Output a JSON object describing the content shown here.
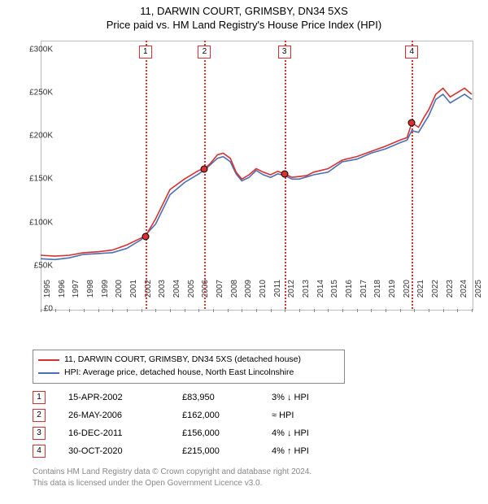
{
  "title_line1": "11, DARWIN COURT, GRIMSBY, DN34 5XS",
  "title_line2": "Price paid vs. HM Land Registry's House Price Index (HPI)",
  "chart": {
    "type": "line",
    "x_min": 1995,
    "x_max": 2025,
    "y_min": 0,
    "y_max": 310000,
    "y_ticks": [
      0,
      50000,
      100000,
      150000,
      200000,
      250000,
      300000
    ],
    "y_tick_labels": [
      "£0",
      "£50K",
      "£100K",
      "£150K",
      "£200K",
      "£250K",
      "£300K"
    ],
    "x_ticks": [
      1995,
      1996,
      1997,
      1998,
      1999,
      2000,
      2001,
      2002,
      2003,
      2004,
      2005,
      2006,
      2007,
      2008,
      2009,
      2010,
      2011,
      2012,
      2013,
      2014,
      2015,
      2016,
      2017,
      2018,
      2019,
      2020,
      2021,
      2022,
      2023,
      2024,
      2025
    ],
    "colors": {
      "red": "#d93030",
      "blue": "#4a6fb3",
      "axis": "#bbbbbb",
      "text": "#333333"
    },
    "line_width": 1.6,
    "series_red": [
      [
        1995,
        62000
      ],
      [
        1996,
        61000
      ],
      [
        1997,
        62000
      ],
      [
        1998,
        65000
      ],
      [
        1999,
        66000
      ],
      [
        2000,
        68000
      ],
      [
        2001,
        74000
      ],
      [
        2002,
        82000
      ],
      [
        2002.29,
        83950
      ],
      [
        2003,
        104000
      ],
      [
        2004,
        138000
      ],
      [
        2005,
        150000
      ],
      [
        2006,
        160000
      ],
      [
        2006.4,
        162000
      ],
      [
        2006.8,
        168000
      ],
      [
        2007.3,
        178000
      ],
      [
        2007.7,
        180000
      ],
      [
        2008.2,
        174000
      ],
      [
        2008.6,
        158000
      ],
      [
        2009,
        150000
      ],
      [
        2009.5,
        155000
      ],
      [
        2010,
        162000
      ],
      [
        2010.5,
        158000
      ],
      [
        2011,
        155000
      ],
      [
        2011.5,
        159000
      ],
      [
        2011.96,
        156000
      ],
      [
        2012.5,
        152000
      ],
      [
        2013,
        153000
      ],
      [
        2013.5,
        154000
      ],
      [
        2014,
        158000
      ],
      [
        2015,
        162000
      ],
      [
        2016,
        172000
      ],
      [
        2017,
        176000
      ],
      [
        2018,
        182000
      ],
      [
        2019,
        188000
      ],
      [
        2020,
        195000
      ],
      [
        2020.5,
        198000
      ],
      [
        2020.83,
        215000
      ],
      [
        2021.3,
        210000
      ],
      [
        2021.7,
        222000
      ],
      [
        2022,
        230000
      ],
      [
        2022.5,
        248000
      ],
      [
        2023,
        255000
      ],
      [
        2023.5,
        245000
      ],
      [
        2024,
        250000
      ],
      [
        2024.5,
        255000
      ],
      [
        2025,
        248000
      ]
    ],
    "series_blue": [
      [
        1995,
        58000
      ],
      [
        1996,
        57000
      ],
      [
        1997,
        59000
      ],
      [
        1998,
        63000
      ],
      [
        1999,
        64000
      ],
      [
        2000,
        65000
      ],
      [
        2001,
        70000
      ],
      [
        2002,
        80000
      ],
      [
        2003,
        98000
      ],
      [
        2004,
        132000
      ],
      [
        2005,
        146000
      ],
      [
        2006,
        156000
      ],
      [
        2006.5,
        162000
      ],
      [
        2007.3,
        174000
      ],
      [
        2007.7,
        176000
      ],
      [
        2008.2,
        170000
      ],
      [
        2008.6,
        156000
      ],
      [
        2009,
        148000
      ],
      [
        2009.5,
        152000
      ],
      [
        2010,
        160000
      ],
      [
        2010.5,
        155000
      ],
      [
        2011,
        152000
      ],
      [
        2011.5,
        156000
      ],
      [
        2012,
        154000
      ],
      [
        2012.5,
        150000
      ],
      [
        2013,
        150000
      ],
      [
        2014,
        155000
      ],
      [
        2015,
        158000
      ],
      [
        2016,
        170000
      ],
      [
        2017,
        173000
      ],
      [
        2018,
        180000
      ],
      [
        2019,
        185000
      ],
      [
        2020,
        192000
      ],
      [
        2020.5,
        195000
      ],
      [
        2020.83,
        206000
      ],
      [
        2021.3,
        204000
      ],
      [
        2021.7,
        215000
      ],
      [
        2022,
        223000
      ],
      [
        2022.5,
        242000
      ],
      [
        2023,
        248000
      ],
      [
        2023.5,
        238000
      ],
      [
        2024,
        243000
      ],
      [
        2024.5,
        248000
      ],
      [
        2025,
        242000
      ]
    ],
    "markers": [
      {
        "n": 1,
        "x": 2002.29,
        "y": 83950
      },
      {
        "n": 2,
        "x": 2006.4,
        "y": 162000
      },
      {
        "n": 3,
        "x": 2011.96,
        "y": 156000
      },
      {
        "n": 4,
        "x": 2020.83,
        "y": 215000
      }
    ]
  },
  "legend": {
    "red_label": "11, DARWIN COURT, GRIMSBY, DN34 5XS (detached house)",
    "blue_label": "HPI: Average price, detached house, North East Lincolnshire"
  },
  "table": {
    "rows": [
      {
        "n": "1",
        "date": "15-APR-2002",
        "price": "£83,950",
        "hpi": "3% ↓ HPI"
      },
      {
        "n": "2",
        "date": "26-MAY-2006",
        "price": "£162,000",
        "hpi": "≈ HPI"
      },
      {
        "n": "3",
        "date": "16-DEC-2011",
        "price": "£156,000",
        "hpi": "4% ↓ HPI"
      },
      {
        "n": "4",
        "date": "30-OCT-2020",
        "price": "£215,000",
        "hpi": "4% ↑ HPI"
      }
    ]
  },
  "footer_line1": "Contains HM Land Registry data © Crown copyright and database right 2024.",
  "footer_line2": "This data is licensed under the Open Government Licence v3.0."
}
